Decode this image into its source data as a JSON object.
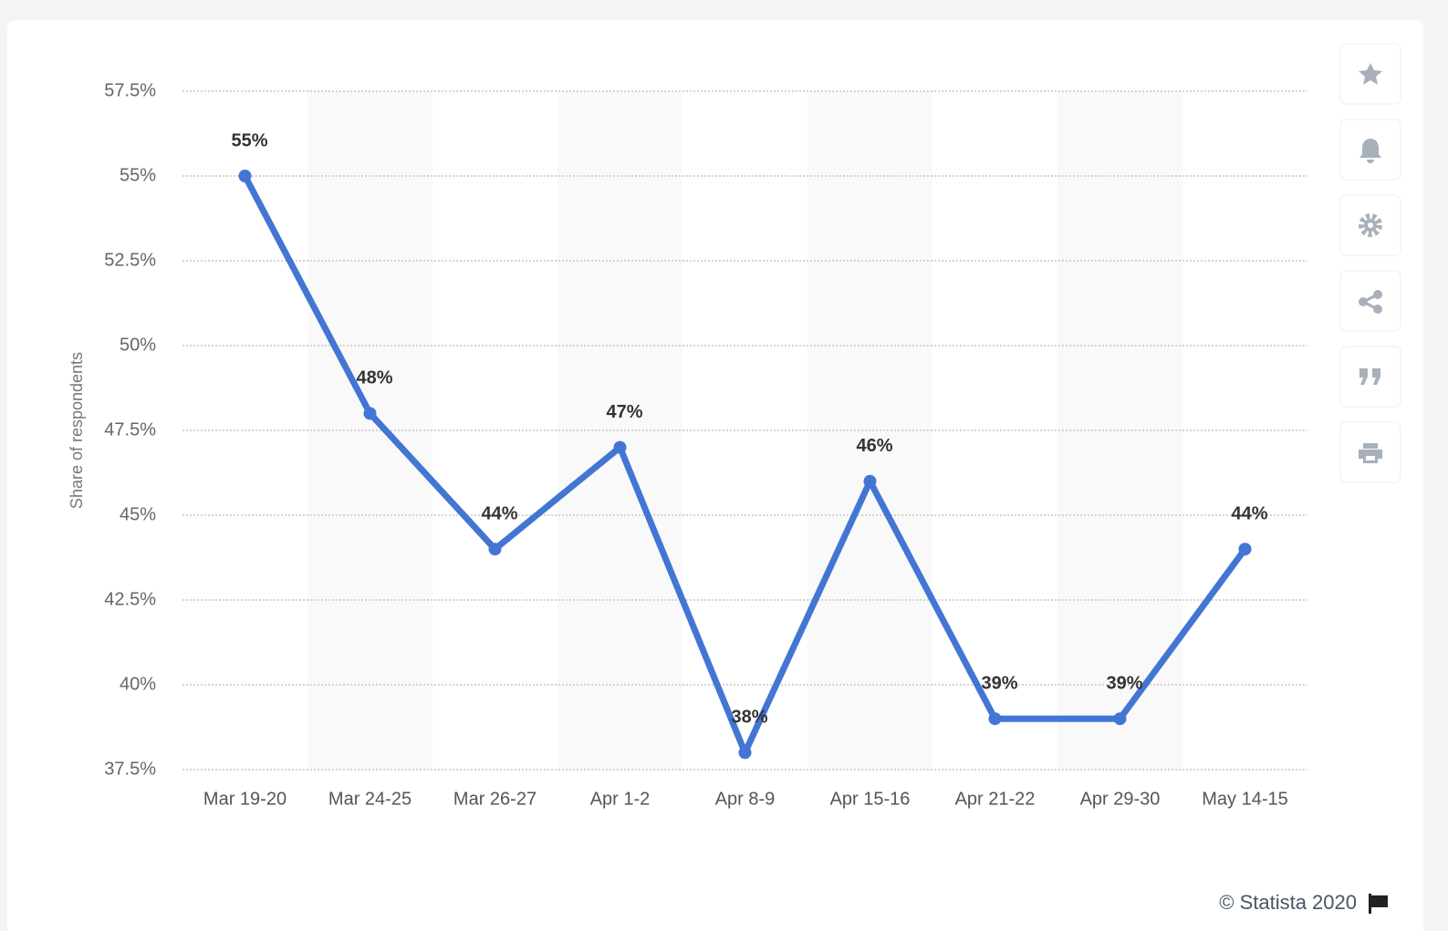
{
  "chart_data": {
    "type": "line",
    "y_label": "Share of respondents",
    "categories": [
      "Mar 19-20",
      "Mar 24-25",
      "Mar 26-27",
      "Apr 1-2",
      "Apr 8-9",
      "Apr 15-16",
      "Apr 21-22",
      "Apr 29-30",
      "May 14-15"
    ],
    "values": [
      55,
      48,
      44,
      47,
      38,
      46,
      39,
      39,
      44
    ],
    "value_labels": [
      "55%",
      "48%",
      "44%",
      "47%",
      "38%",
      "46%",
      "39%",
      "39%",
      "44%"
    ],
    "color": "#4275d4",
    "ylim": [
      37.5,
      57.5
    ],
    "yticks": [
      {
        "value": 37.5,
        "label": "37.5%"
      },
      {
        "value": 40,
        "label": "40%"
      },
      {
        "value": 42.5,
        "label": "42.5%"
      },
      {
        "value": 45,
        "label": "45%"
      },
      {
        "value": 47.5,
        "label": "47.5%"
      },
      {
        "value": 50,
        "label": "50%"
      },
      {
        "value": 52.5,
        "label": "52.5%"
      },
      {
        "value": 55,
        "label": "55%"
      },
      {
        "value": 57.5,
        "label": "57.5%"
      }
    ],
    "grid": true,
    "credit": "© Statista 2020"
  }
}
